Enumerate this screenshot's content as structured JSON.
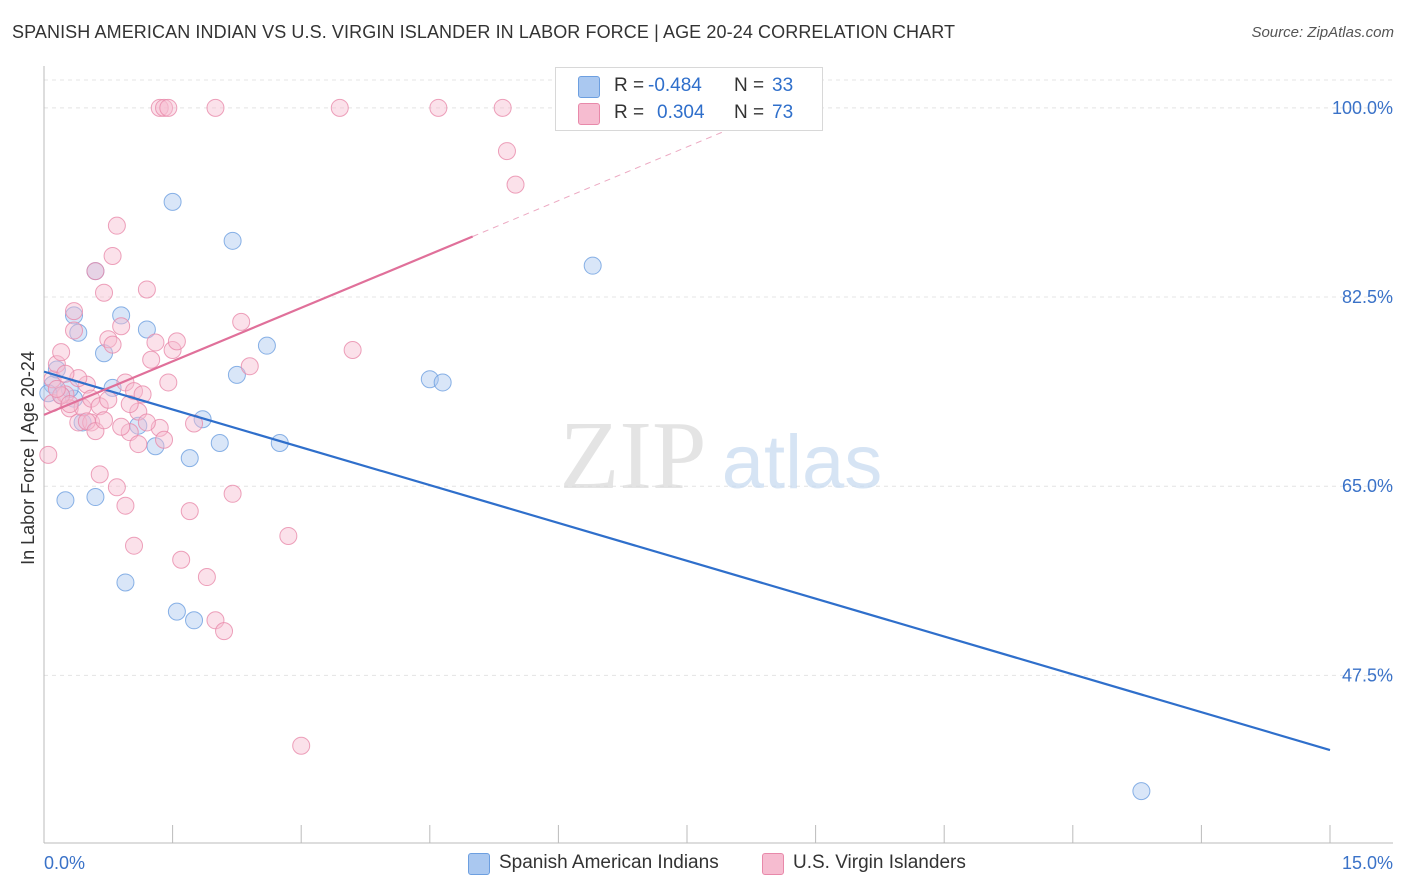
{
  "header": {
    "title": "SPANISH AMERICAN INDIAN VS U.S. VIRGIN ISLANDER IN LABOR FORCE | AGE 20-24 CORRELATION CHART",
    "source": "Source: ZipAtlas.com"
  },
  "watermark": {
    "zip": "ZIP",
    "atlas": "atlas"
  },
  "legend": {
    "rows": [
      {
        "r_label": "R =",
        "r_value": "-0.484",
        "n_label": "N =",
        "n_value": "33"
      },
      {
        "r_label": "R =",
        "r_value": "0.304",
        "n_label": "N =",
        "n_value": "73"
      }
    ]
  },
  "colors": {
    "blue_fill": "#aac8f0",
    "blue_stroke": "#6d9fe0",
    "blue_line": "#2f6fcb",
    "pink_fill": "#f6bcd0",
    "pink_stroke": "#e889aa",
    "pink_line": "#e0709a",
    "tick_label": "#3a72c8",
    "grid": "#e4e4e4"
  },
  "chart_data": {
    "type": "scatter",
    "title": "SPANISH AMERICAN INDIAN VS U.S. VIRGIN ISLANDER IN LABOR FORCE | AGE 20-24 CORRELATION CHART",
    "xlabel": "",
    "ylabel": "In Labor Force | Age 20-24",
    "xlim": [
      0,
      15
    ],
    "ylim": [
      32,
      103.5
    ],
    "x_tick_labels": [
      {
        "value": 0,
        "label": "0.0%"
      },
      {
        "value": 15,
        "label": "15.0%"
      }
    ],
    "y_ticks": [
      {
        "value": 47.5,
        "label": "47.5%"
      },
      {
        "value": 65,
        "label": "65.0%"
      },
      {
        "value": 82.5,
        "label": "82.5%"
      },
      {
        "value": 100,
        "label": "100.0%"
      }
    ],
    "series": [
      {
        "name": "Spanish American Indians",
        "color": "blue",
        "trend": {
          "x0": 0,
          "y0": 75.6,
          "x1": 15,
          "y1": 40.6
        },
        "points": [
          [
            0.1,
            74.4
          ],
          [
            0.15,
            75.8
          ],
          [
            0.2,
            73.4
          ],
          [
            0.25,
            63.7
          ],
          [
            0.35,
            80.8
          ],
          [
            0.6,
            84.9
          ],
          [
            0.4,
            79.2
          ],
          [
            0.7,
            77.3
          ],
          [
            0.9,
            80.8
          ],
          [
            1.2,
            79.5
          ],
          [
            0.8,
            74.1
          ],
          [
            1.1,
            70.6
          ],
          [
            1.3,
            68.7
          ],
          [
            1.55,
            53.4
          ],
          [
            1.5,
            91.3
          ],
          [
            1.75,
            52.6
          ],
          [
            1.85,
            71.2
          ],
          [
            2.05,
            69.0
          ],
          [
            1.7,
            67.6
          ],
          [
            2.2,
            87.7
          ],
          [
            2.25,
            75.3
          ],
          [
            2.6,
            78.0
          ],
          [
            2.75,
            69.0
          ],
          [
            0.95,
            56.1
          ],
          [
            4.5,
            74.9
          ],
          [
            4.65,
            74.6
          ],
          [
            6.4,
            85.4
          ],
          [
            0.6,
            64.0
          ],
          [
            0.35,
            73.1
          ],
          [
            0.3,
            74.0
          ],
          [
            0.05,
            73.6
          ],
          [
            0.45,
            70.9
          ],
          [
            12.8,
            36.8
          ]
        ]
      },
      {
        "name": "U.S. Virgin Islanders",
        "color": "pink",
        "trend": {
          "x0": 0,
          "y0": 71.6,
          "x1": 5.0,
          "y1": 88.1,
          "dashed_to": {
            "x": 8.5,
            "y": 99.7
          }
        },
        "points": [
          [
            0.05,
            67.9
          ],
          [
            0.1,
            72.7
          ],
          [
            0.1,
            74.9
          ],
          [
            0.15,
            76.3
          ],
          [
            0.2,
            77.4
          ],
          [
            0.25,
            73.5
          ],
          [
            0.3,
            72.2
          ],
          [
            0.35,
            81.2
          ],
          [
            0.35,
            79.4
          ],
          [
            0.4,
            70.9
          ],
          [
            0.45,
            72.3
          ],
          [
            0.5,
            74.4
          ],
          [
            0.55,
            73.1
          ],
          [
            0.55,
            70.9
          ],
          [
            0.6,
            84.9
          ],
          [
            0.65,
            66.1
          ],
          [
            0.7,
            82.9
          ],
          [
            0.75,
            78.6
          ],
          [
            0.8,
            78.1
          ],
          [
            0.85,
            89.1
          ],
          [
            0.9,
            79.8
          ],
          [
            0.95,
            74.6
          ],
          [
            1.0,
            70.0
          ],
          [
            1.05,
            73.8
          ],
          [
            1.1,
            71.9
          ],
          [
            0.8,
            86.3
          ],
          [
            0.85,
            64.9
          ],
          [
            1.15,
            73.5
          ],
          [
            1.2,
            83.2
          ],
          [
            1.25,
            76.7
          ],
          [
            1.3,
            78.3
          ],
          [
            1.35,
            70.4
          ],
          [
            1.4,
            69.3
          ],
          [
            1.45,
            74.6
          ],
          [
            1.5,
            77.6
          ],
          [
            1.55,
            78.4
          ],
          [
            1.6,
            58.2
          ],
          [
            1.7,
            62.7
          ],
          [
            1.75,
            70.8
          ],
          [
            1.9,
            56.6
          ],
          [
            2.0,
            52.6
          ],
          [
            2.1,
            51.6
          ],
          [
            2.2,
            64.3
          ],
          [
            2.3,
            80.2
          ],
          [
            2.4,
            76.1
          ],
          [
            1.05,
            59.5
          ],
          [
            0.95,
            63.2
          ],
          [
            2.85,
            60.4
          ],
          [
            3.0,
            41.0
          ],
          [
            1.35,
            100.0
          ],
          [
            1.4,
            100.0
          ],
          [
            1.45,
            100.0
          ],
          [
            2.0,
            100.0
          ],
          [
            3.45,
            100.0
          ],
          [
            4.6,
            100.0
          ],
          [
            5.35,
            100.0
          ],
          [
            5.4,
            96.0
          ],
          [
            5.5,
            92.9
          ],
          [
            3.6,
            77.6
          ],
          [
            0.2,
            73.4
          ],
          [
            0.3,
            72.6
          ],
          [
            0.4,
            75.0
          ],
          [
            0.5,
            71.0
          ],
          [
            0.6,
            70.1
          ],
          [
            0.65,
            72.4
          ],
          [
            0.75,
            73.0
          ],
          [
            0.9,
            70.5
          ],
          [
            1.0,
            72.6
          ],
          [
            1.1,
            68.9
          ],
          [
            1.2,
            70.9
          ],
          [
            0.15,
            74.0
          ],
          [
            0.25,
            75.4
          ],
          [
            0.7,
            71.1
          ]
        ]
      }
    ],
    "legend_position": "top-center"
  }
}
